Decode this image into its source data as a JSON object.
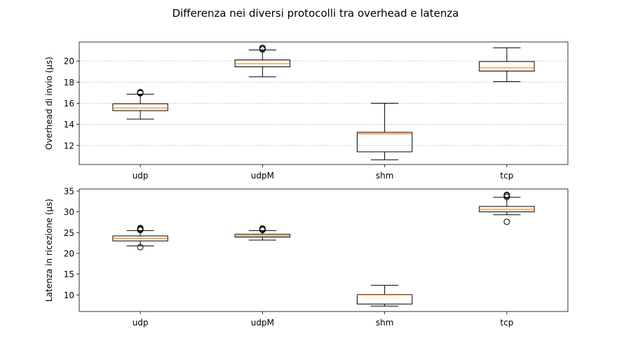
{
  "title": "Differenza nei diversi protocolli tra overhead e latenza",
  "chart_data": [
    {
      "type": "boxplot",
      "title": "",
      "xlabel": "",
      "ylabel": "Overhead di invio (µs)",
      "categories": [
        "udp",
        "udpM",
        "shm",
        "tcp"
      ],
      "ylim": [
        10.2,
        21.8
      ],
      "yticks": [
        12,
        14,
        16,
        18,
        20
      ],
      "grid": "y-dotted",
      "boxes": [
        {
          "whislo": 14.5,
          "q1": 15.3,
          "med": 15.55,
          "q3": 15.95,
          "whishi": 16.85,
          "fliers": [
            16.95,
            17.0,
            17.05
          ]
        },
        {
          "whislo": 18.5,
          "q1": 19.45,
          "med": 19.75,
          "q3": 20.1,
          "whishi": 21.05,
          "fliers": [
            21.1,
            21.15,
            21.25
          ]
        },
        {
          "whislo": 10.65,
          "q1": 11.4,
          "med": 13.1,
          "q3": 13.25,
          "whishi": 16.0,
          "fliers": []
        },
        {
          "whislo": 18.05,
          "q1": 19.05,
          "med": 19.35,
          "q3": 19.95,
          "whishi": 21.25,
          "fliers": []
        }
      ]
    },
    {
      "type": "boxplot",
      "title": "",
      "xlabel": "",
      "ylabel": "Latenza in ricezione (µs)",
      "categories": [
        "udp",
        "udpM",
        "shm",
        "tcp"
      ],
      "ylim": [
        6,
        35.5
      ],
      "yticks": [
        10,
        15,
        20,
        25,
        30,
        35
      ],
      "grid": "none",
      "boxes": [
        {
          "whislo": 21.8,
          "q1": 23.0,
          "med": 23.6,
          "q3": 24.2,
          "whishi": 25.5,
          "fliers": [
            21.5,
            25.6,
            25.8,
            26.0,
            26.1
          ]
        },
        {
          "whislo": 23.2,
          "q1": 23.9,
          "med": 24.2,
          "q3": 24.6,
          "whishi": 25.5,
          "fliers": [
            25.6,
            25.8,
            26.0
          ]
        },
        {
          "whislo": 7.3,
          "q1": 7.8,
          "med": 10.0,
          "q3": 10.1,
          "whishi": 12.3,
          "fliers": []
        },
        {
          "whislo": 29.3,
          "q1": 30.0,
          "med": 30.6,
          "q3": 31.3,
          "whishi": 33.5,
          "fliers": [
            27.6,
            33.6,
            33.9,
            34.1
          ]
        }
      ]
    }
  ],
  "colors": {
    "median": "#ff7f0e",
    "box": "#000000",
    "grid": "#b0b0b0"
  }
}
